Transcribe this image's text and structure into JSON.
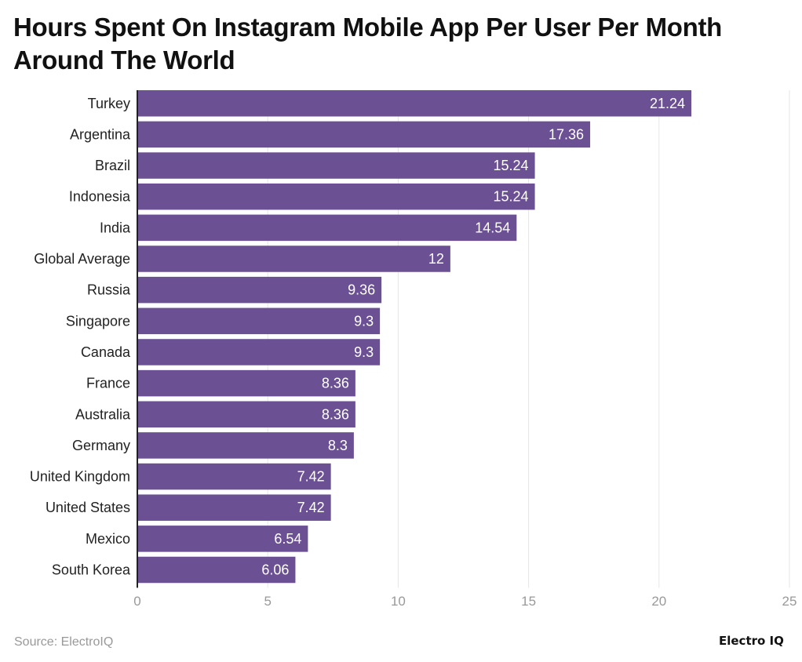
{
  "chart_data": {
    "type": "bar",
    "orientation": "horizontal",
    "title": "Hours Spent On Instagram Mobile App Per User Per Month Around The World",
    "categories": [
      "Turkey",
      "Argentina",
      "Brazil",
      "Indonesia",
      "India",
      "Global Average",
      "Russia",
      "Singapore",
      "Canada",
      "France",
      "Australia",
      "Germany",
      "United Kingdom",
      "United States",
      "Mexico",
      "South Korea"
    ],
    "values": [
      21.24,
      17.36,
      15.24,
      15.24,
      14.54,
      12,
      9.36,
      9.3,
      9.3,
      8.36,
      8.36,
      8.3,
      7.42,
      7.42,
      6.54,
      6.06
    ],
    "xlim": [
      0,
      25
    ],
    "xticks": [
      0,
      5,
      10,
      15,
      20,
      25
    ],
    "grid": true,
    "bar_color": "#6b5194",
    "data_labels": true
  },
  "source": "Source: ElectroIQ",
  "logo": "Electro IQ"
}
